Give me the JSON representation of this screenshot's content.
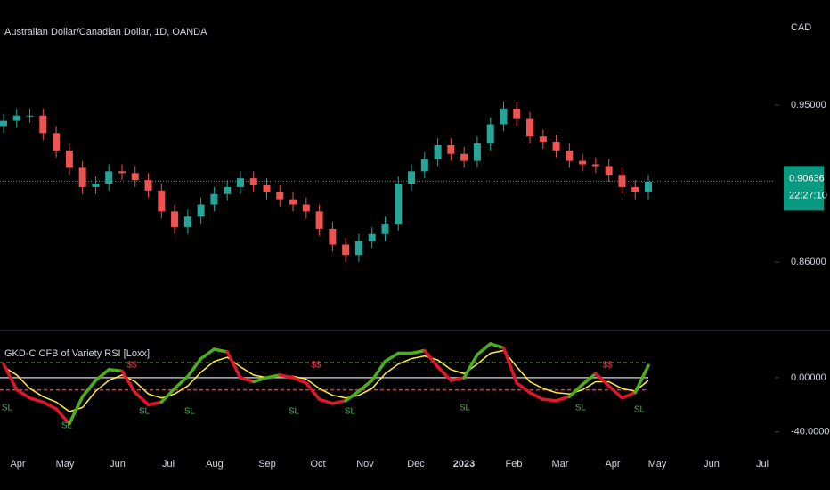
{
  "chart_data": [
    {
      "type": "candlestick",
      "title": "Australian Dollar/Canadian Dollar, 1D, OANDA",
      "currency": "CAD",
      "categories": [
        null,
        null,
        null,
        null,
        null,
        null,
        null,
        null,
        null,
        null,
        null,
        null,
        null,
        null,
        null,
        null,
        null,
        null,
        null,
        null,
        null,
        null,
        null,
        null,
        null,
        null,
        null,
        null,
        null,
        null,
        null,
        null,
        null,
        null,
        null,
        null,
        null,
        null,
        null,
        null,
        null,
        null,
        null,
        null,
        null,
        null,
        null,
        null,
        null,
        null
      ],
      "open": [
        0.938,
        0.941,
        0.944,
        0.944,
        0.934,
        0.924,
        0.914,
        0.903,
        0.905,
        0.912,
        0.911,
        0.907,
        0.901,
        0.889,
        0.88,
        0.886,
        0.893,
        0.899,
        0.903,
        0.908,
        0.904,
        0.9,
        0.896,
        0.893,
        0.889,
        0.879,
        0.87,
        0.864,
        0.872,
        0.876,
        0.882,
        0.905,
        0.912,
        0.919,
        0.927,
        0.922,
        0.918,
        0.928,
        0.939,
        0.948,
        0.942,
        0.932,
        0.929,
        0.924,
        0.918,
        0.916,
        0.915,
        0.91,
        0.903,
        0.9
      ],
      "high": [
        0.945,
        0.948,
        0.948,
        0.948,
        0.938,
        0.928,
        0.918,
        0.909,
        0.916,
        0.916,
        0.915,
        0.911,
        0.905,
        0.893,
        0.89,
        0.897,
        0.903,
        0.907,
        0.912,
        0.912,
        0.908,
        0.904,
        0.9,
        0.897,
        0.893,
        0.883,
        0.874,
        0.876,
        0.88,
        0.886,
        0.909,
        0.916,
        0.923,
        0.931,
        0.931,
        0.926,
        0.932,
        0.943,
        0.952,
        0.952,
        0.946,
        0.936,
        0.933,
        0.928,
        0.922,
        0.92,
        0.919,
        0.914,
        0.907,
        0.91
      ],
      "low": [
        0.934,
        0.937,
        0.94,
        0.93,
        0.92,
        0.91,
        0.899,
        0.899,
        0.901,
        0.907,
        0.903,
        0.897,
        0.885,
        0.876,
        0.876,
        0.882,
        0.889,
        0.895,
        0.899,
        0.9,
        0.896,
        0.892,
        0.889,
        0.885,
        0.875,
        0.866,
        0.86,
        0.86,
        0.868,
        0.872,
        0.878,
        0.901,
        0.908,
        0.915,
        0.918,
        0.914,
        0.914,
        0.924,
        0.935,
        0.938,
        0.928,
        0.925,
        0.92,
        0.914,
        0.912,
        0.911,
        0.906,
        0.899,
        0.896,
        0.896
      ],
      "close": [
        0.941,
        0.944,
        0.944,
        0.934,
        0.924,
        0.914,
        0.903,
        0.905,
        0.912,
        0.911,
        0.907,
        0.901,
        0.889,
        0.88,
        0.886,
        0.893,
        0.899,
        0.903,
        0.908,
        0.904,
        0.9,
        0.896,
        0.893,
        0.889,
        0.879,
        0.87,
        0.864,
        0.872,
        0.876,
        0.882,
        0.905,
        0.912,
        0.919,
        0.927,
        0.922,
        0.918,
        0.928,
        0.939,
        0.948,
        0.942,
        0.932,
        0.929,
        0.924,
        0.918,
        0.916,
        0.915,
        0.91,
        0.903,
        0.9,
        0.906
      ],
      "up_color": "#26a69a",
      "down_color": "#ef5350",
      "ylim": [
        0.8212,
        1.0103
      ],
      "yticks": [
        {
          "value": 0.95,
          "label": "0.95000"
        },
        {
          "value": 0.86,
          "label": "0.86000"
        }
      ],
      "last_price": 0.90636,
      "countdown": "22:27:10",
      "x_labels": [
        "Apr",
        "May",
        "Jun",
        "Jul",
        "Aug",
        "Sep",
        "Oct",
        "Nov",
        "Dec",
        "2023",
        "Feb",
        "Mar",
        "Apr",
        "May",
        "Jun",
        "Jul"
      ]
    },
    {
      "type": "line",
      "title": "GKD-C CFB of Variety RSI [Loxx]",
      "categories": [
        null,
        null,
        null,
        null,
        null,
        null,
        null,
        null,
        null,
        null,
        null,
        null,
        null,
        null,
        null,
        null,
        null,
        null,
        null,
        null,
        null,
        null,
        null,
        null,
        null,
        null,
        null,
        null,
        null,
        null,
        null,
        null,
        null,
        null,
        null,
        null,
        null,
        null,
        null,
        null,
        null,
        null,
        null,
        null,
        null,
        null,
        null,
        null,
        null,
        null
      ],
      "series": [
        {
          "color": "#4caf1a",
          "down_color": "#e0162b",
          "values": [
            10,
            -9,
            -15,
            -18,
            -23,
            -34,
            -14,
            -2,
            6,
            5,
            -11,
            -20,
            -18,
            -8,
            1,
            14,
            21,
            19,
            0,
            -3,
            0,
            2,
            0,
            -4,
            -16,
            -19,
            -17,
            -10,
            -2,
            12,
            18,
            18,
            20,
            8,
            -2,
            0,
            17,
            25,
            22,
            -4,
            -11,
            -16,
            -17,
            -14,
            -5,
            3,
            -6,
            -15,
            -11,
            9
          ]
        },
        {
          "color": "#ffeb3b",
          "values": [
            8,
            2,
            -8,
            -14,
            -18,
            -25,
            -22,
            -10,
            -2,
            2,
            -3,
            -12,
            -15,
            -12,
            -6,
            4,
            12,
            15,
            8,
            2,
            0,
            1,
            1,
            -1,
            -8,
            -13,
            -15,
            -13,
            -8,
            3,
            10,
            14,
            16,
            13,
            6,
            3,
            10,
            18,
            20,
            8,
            -3,
            -8,
            -11,
            -12,
            -9,
            -3,
            -3,
            -8,
            -10,
            -2
          ]
        }
      ],
      "levels": [
        {
          "value": 11,
          "color": "#4caf50"
        },
        {
          "value": -9,
          "color": "#f23645"
        },
        {
          "value": 0,
          "color": "#b2b5be"
        }
      ],
      "ylim": [
        -50,
        31.5
      ],
      "yticks": [
        {
          "value": 0,
          "label": "0.00000"
        },
        {
          "value": -40,
          "label": "-40.00000"
        }
      ],
      "sl_labels": [
        "SL",
        "SL",
        "SL",
        "SL",
        "SL",
        "SL",
        "SL",
        "SL",
        "SL"
      ],
      "dollar_labels": [
        "$$",
        "$$",
        "$$"
      ]
    }
  ]
}
